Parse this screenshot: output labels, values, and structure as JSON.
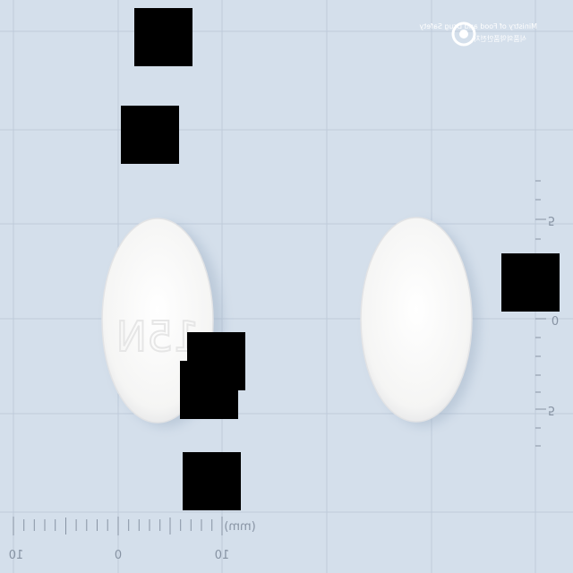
{
  "colors": {
    "background": "#d4dfeb",
    "grid": "#bfcbda",
    "ruler": "#8793a3",
    "tablet": "#f7f7f6",
    "redaction": "#000000"
  },
  "logo": {
    "icon": "circle-logo-icon",
    "line1": "Ministry of Food and Drug Safety",
    "line2": "식품의약품안전처"
  },
  "tablet": {
    "imprint": "15N"
  },
  "horizontal_scale": {
    "labels": [
      "10",
      "0",
      "10"
    ],
    "unit": "(mm)"
  },
  "vertical_scale": {
    "labels": [
      "5",
      "0",
      "5"
    ]
  },
  "redaction_count": 7
}
